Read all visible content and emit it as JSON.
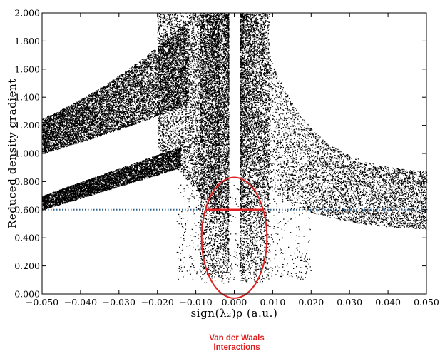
{
  "chart_data": {
    "type": "scatter",
    "title": "",
    "xlabel": "sign(λ₂)ρ (a.u.)",
    "ylabel": "Reduced density gradient",
    "xlim": [
      -0.05,
      0.05
    ],
    "ylim": [
      0,
      2
    ],
    "x_ticks": [
      "−0.050",
      "−0.040",
      "−0.030",
      "−0.020",
      "−0.010",
      "0.000",
      "0.010",
      "0.020",
      "0.030",
      "0.040",
      "0.050"
    ],
    "y_ticks": [
      "0.000",
      "0.200",
      "0.400",
      "0.600",
      "0.800",
      "1.000",
      "1.200",
      "1.400",
      "1.600",
      "1.800",
      "2.000"
    ],
    "grid": false,
    "series": [
      {
        "kind": "point-cloud",
        "color": "#000000",
        "bands": [
          {
            "region": "upper-left band",
            "x_range": [
              -0.05,
              -0.012
            ],
            "y_at_left": [
              1.0,
              1.25
            ],
            "y_at_right": [
              1.3,
              1.9
            ]
          },
          {
            "region": "lower-left band",
            "x_range": [
              -0.05,
              -0.014
            ],
            "y_at_left": [
              0.6,
              0.7
            ],
            "y_at_right": [
              0.9,
              1.05
            ]
          },
          {
            "region": "central spike left",
            "x_range": [
              -0.008,
              -0.002
            ],
            "y_range": [
              0.1,
              2.0
            ]
          },
          {
            "region": "central spike right",
            "x_range": [
              0.001,
              0.008
            ],
            "y_range": [
              0.08,
              2.0
            ]
          },
          {
            "region": "right decay",
            "x_range": [
              0.008,
              0.05
            ],
            "y_at_left": [
              0.8,
              2.0
            ],
            "y_at_right": [
              0.45,
              0.85
            ]
          }
        ]
      }
    ],
    "reference_line": {
      "y": 0.6,
      "style": "dotted",
      "color": "#2e5f8a"
    },
    "highlight": {
      "shape": "ellipse",
      "cx": 0.0,
      "cy": 0.4,
      "rx": 0.0085,
      "ry": 0.43,
      "color": "#e02020",
      "inner_line_y": 0.6,
      "inner_line_x": [
        -0.0075,
        0.0075
      ]
    }
  },
  "annotation": {
    "line1": "Van der Waals",
    "line2": "Interactions",
    "color": "#e02020"
  }
}
